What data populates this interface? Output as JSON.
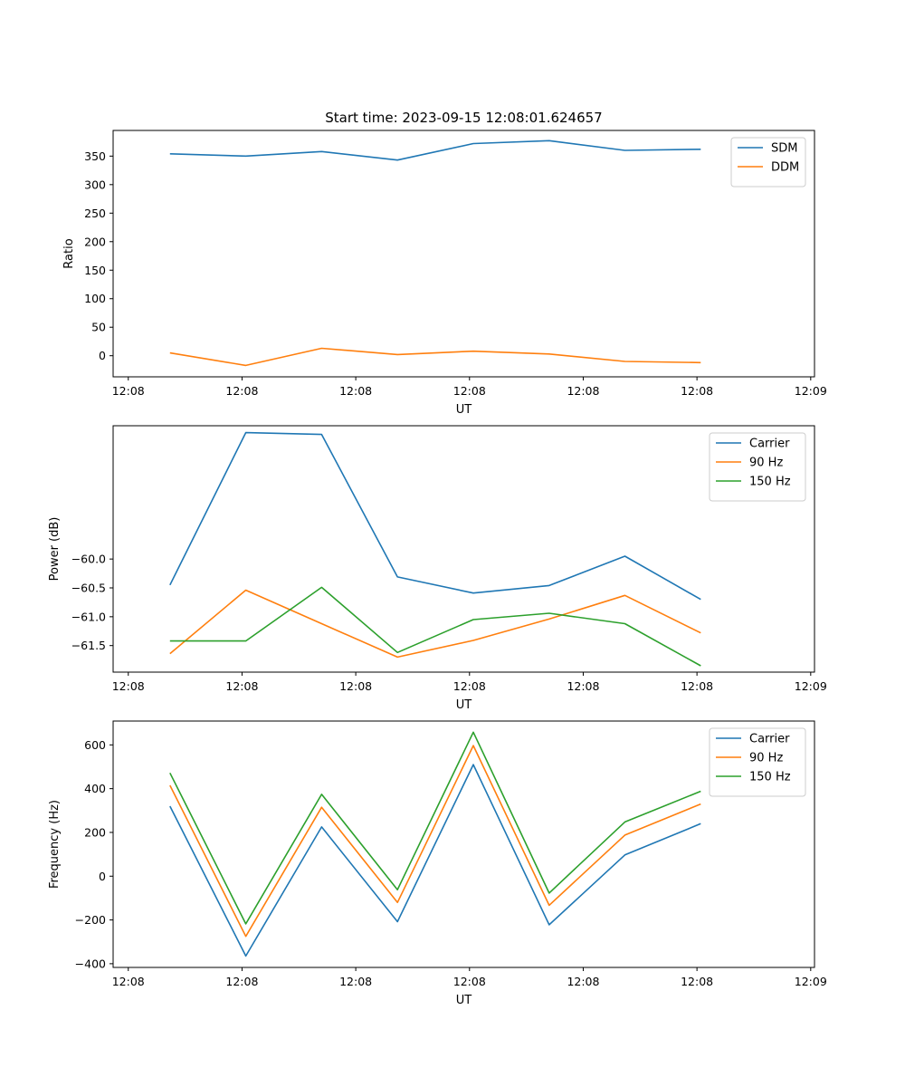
{
  "chart_data": [
    {
      "type": "line",
      "title": "Start time: 2023-09-15 12:08:01.624657",
      "xlabel": "UT",
      "ylabel": "Ratio",
      "x": [
        0,
        1,
        2,
        3,
        4,
        5,
        6,
        7
      ],
      "xlim": [
        -0.75,
        8.5
      ],
      "xticks": [
        -0.55,
        0.95,
        2.45,
        3.95,
        5.45,
        6.95,
        8.45
      ],
      "xtick_labels": [
        "12:08",
        "12:08",
        "12:08",
        "12:08",
        "12:08",
        "12:08",
        "12:09"
      ],
      "ylim": [
        -37,
        395
      ],
      "yticks": [
        0,
        50,
        100,
        150,
        200,
        250,
        300,
        350
      ],
      "ytick_labels": [
        "0",
        "50",
        "100",
        "150",
        "200",
        "250",
        "300",
        "350"
      ],
      "legend_position": "top-right",
      "series": [
        {
          "name": "SDM",
          "color": "#1f77b4",
          "values": [
            354,
            350,
            358,
            343,
            372,
            377,
            360,
            362
          ]
        },
        {
          "name": "DDM",
          "color": "#ff7f0e",
          "values": [
            5,
            -17,
            13,
            2,
            8,
            3,
            -10,
            -12
          ]
        }
      ]
    },
    {
      "type": "line",
      "title": "",
      "xlabel": "UT",
      "ylabel": "Power (dB)",
      "x": [
        0,
        1,
        2,
        3,
        4,
        5,
        6,
        7
      ],
      "xlim": [
        -0.75,
        8.5
      ],
      "xticks": [
        -0.55,
        0.95,
        2.45,
        3.95,
        5.45,
        6.95,
        8.45
      ],
      "xtick_labels": [
        "12:08",
        "12:08",
        "12:08",
        "12:08",
        "12:08",
        "12:08",
        "12:09"
      ],
      "ylim": [
        -61.96,
        -57.69
      ],
      "yticks": [
        -60.0,
        -60.5,
        -61.0,
        -61.5
      ],
      "ytick_labels": [
        "−60.0",
        "−60.5",
        "−61.0",
        "−61.5"
      ],
      "legend_position": "top-right",
      "series": [
        {
          "name": "Carrier",
          "color": "#1f77b4",
          "values": [
            -60.45,
            -57.81,
            -57.84,
            -60.31,
            -60.59,
            -60.46,
            -59.95,
            -60.7
          ]
        },
        {
          "name": "90 Hz",
          "color": "#ff7f0e",
          "values": [
            -61.64,
            -60.54,
            -61.12,
            -61.7,
            -61.41,
            -61.04,
            -60.63,
            -61.28
          ]
        },
        {
          "name": "150 Hz",
          "color": "#2ca02c",
          "values": [
            -61.42,
            -61.42,
            -60.49,
            -61.62,
            -61.05,
            -60.94,
            -61.12,
            -61.85
          ]
        }
      ]
    },
    {
      "type": "line",
      "title": "",
      "xlabel": "UT",
      "ylabel": "Frequency (Hz)",
      "x": [
        0,
        1,
        2,
        3,
        4,
        5,
        6,
        7
      ],
      "xlim": [
        -0.75,
        8.5
      ],
      "xticks": [
        -0.55,
        0.95,
        2.45,
        3.95,
        5.45,
        6.95,
        8.45
      ],
      "xtick_labels": [
        "12:08",
        "12:08",
        "12:08",
        "12:08",
        "12:08",
        "12:08",
        "12:09"
      ],
      "ylim": [
        -417,
        709
      ],
      "yticks": [
        -400,
        -200,
        0,
        200,
        400,
        600
      ],
      "ytick_labels": [
        "−400",
        "−200",
        "0",
        "200",
        "400",
        "600"
      ],
      "legend_position": "top-right",
      "series": [
        {
          "name": "Carrier",
          "color": "#1f77b4",
          "values": [
            320,
            -365,
            225,
            -208,
            510,
            -222,
            97,
            240
          ]
        },
        {
          "name": "90 Hz",
          "color": "#ff7f0e",
          "values": [
            415,
            -275,
            315,
            -120,
            597,
            -133,
            188,
            330
          ]
        },
        {
          "name": "150 Hz",
          "color": "#2ca02c",
          "values": [
            472,
            -218,
            374,
            -62,
            658,
            -77,
            248,
            388
          ]
        }
      ]
    }
  ]
}
